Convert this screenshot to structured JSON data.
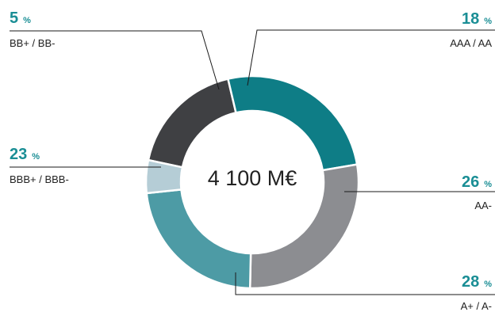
{
  "colors": {
    "label_accent": "#1a8e95",
    "leader_line": "#1a1a1a",
    "ring_border": "#ffffff",
    "center_text": "#222222"
  },
  "chart_data": {
    "type": "pie",
    "variant": "donut",
    "center_label": "4 100 M€",
    "percent_sign": "%",
    "slices": [
      {
        "label": "AAA / AA",
        "value": 18,
        "color": "#3f4043"
      },
      {
        "label": "AA-",
        "value": 26,
        "color": "#0e7d86"
      },
      {
        "label": "A+ / A-",
        "value": 28,
        "color": "#8c8d91"
      },
      {
        "label": "BBB+ / BBB-",
        "value": 23,
        "color": "#4d9ba5"
      },
      {
        "label": "BB+ / BB-",
        "value": 5,
        "color": "#b5cdd6"
      }
    ]
  }
}
